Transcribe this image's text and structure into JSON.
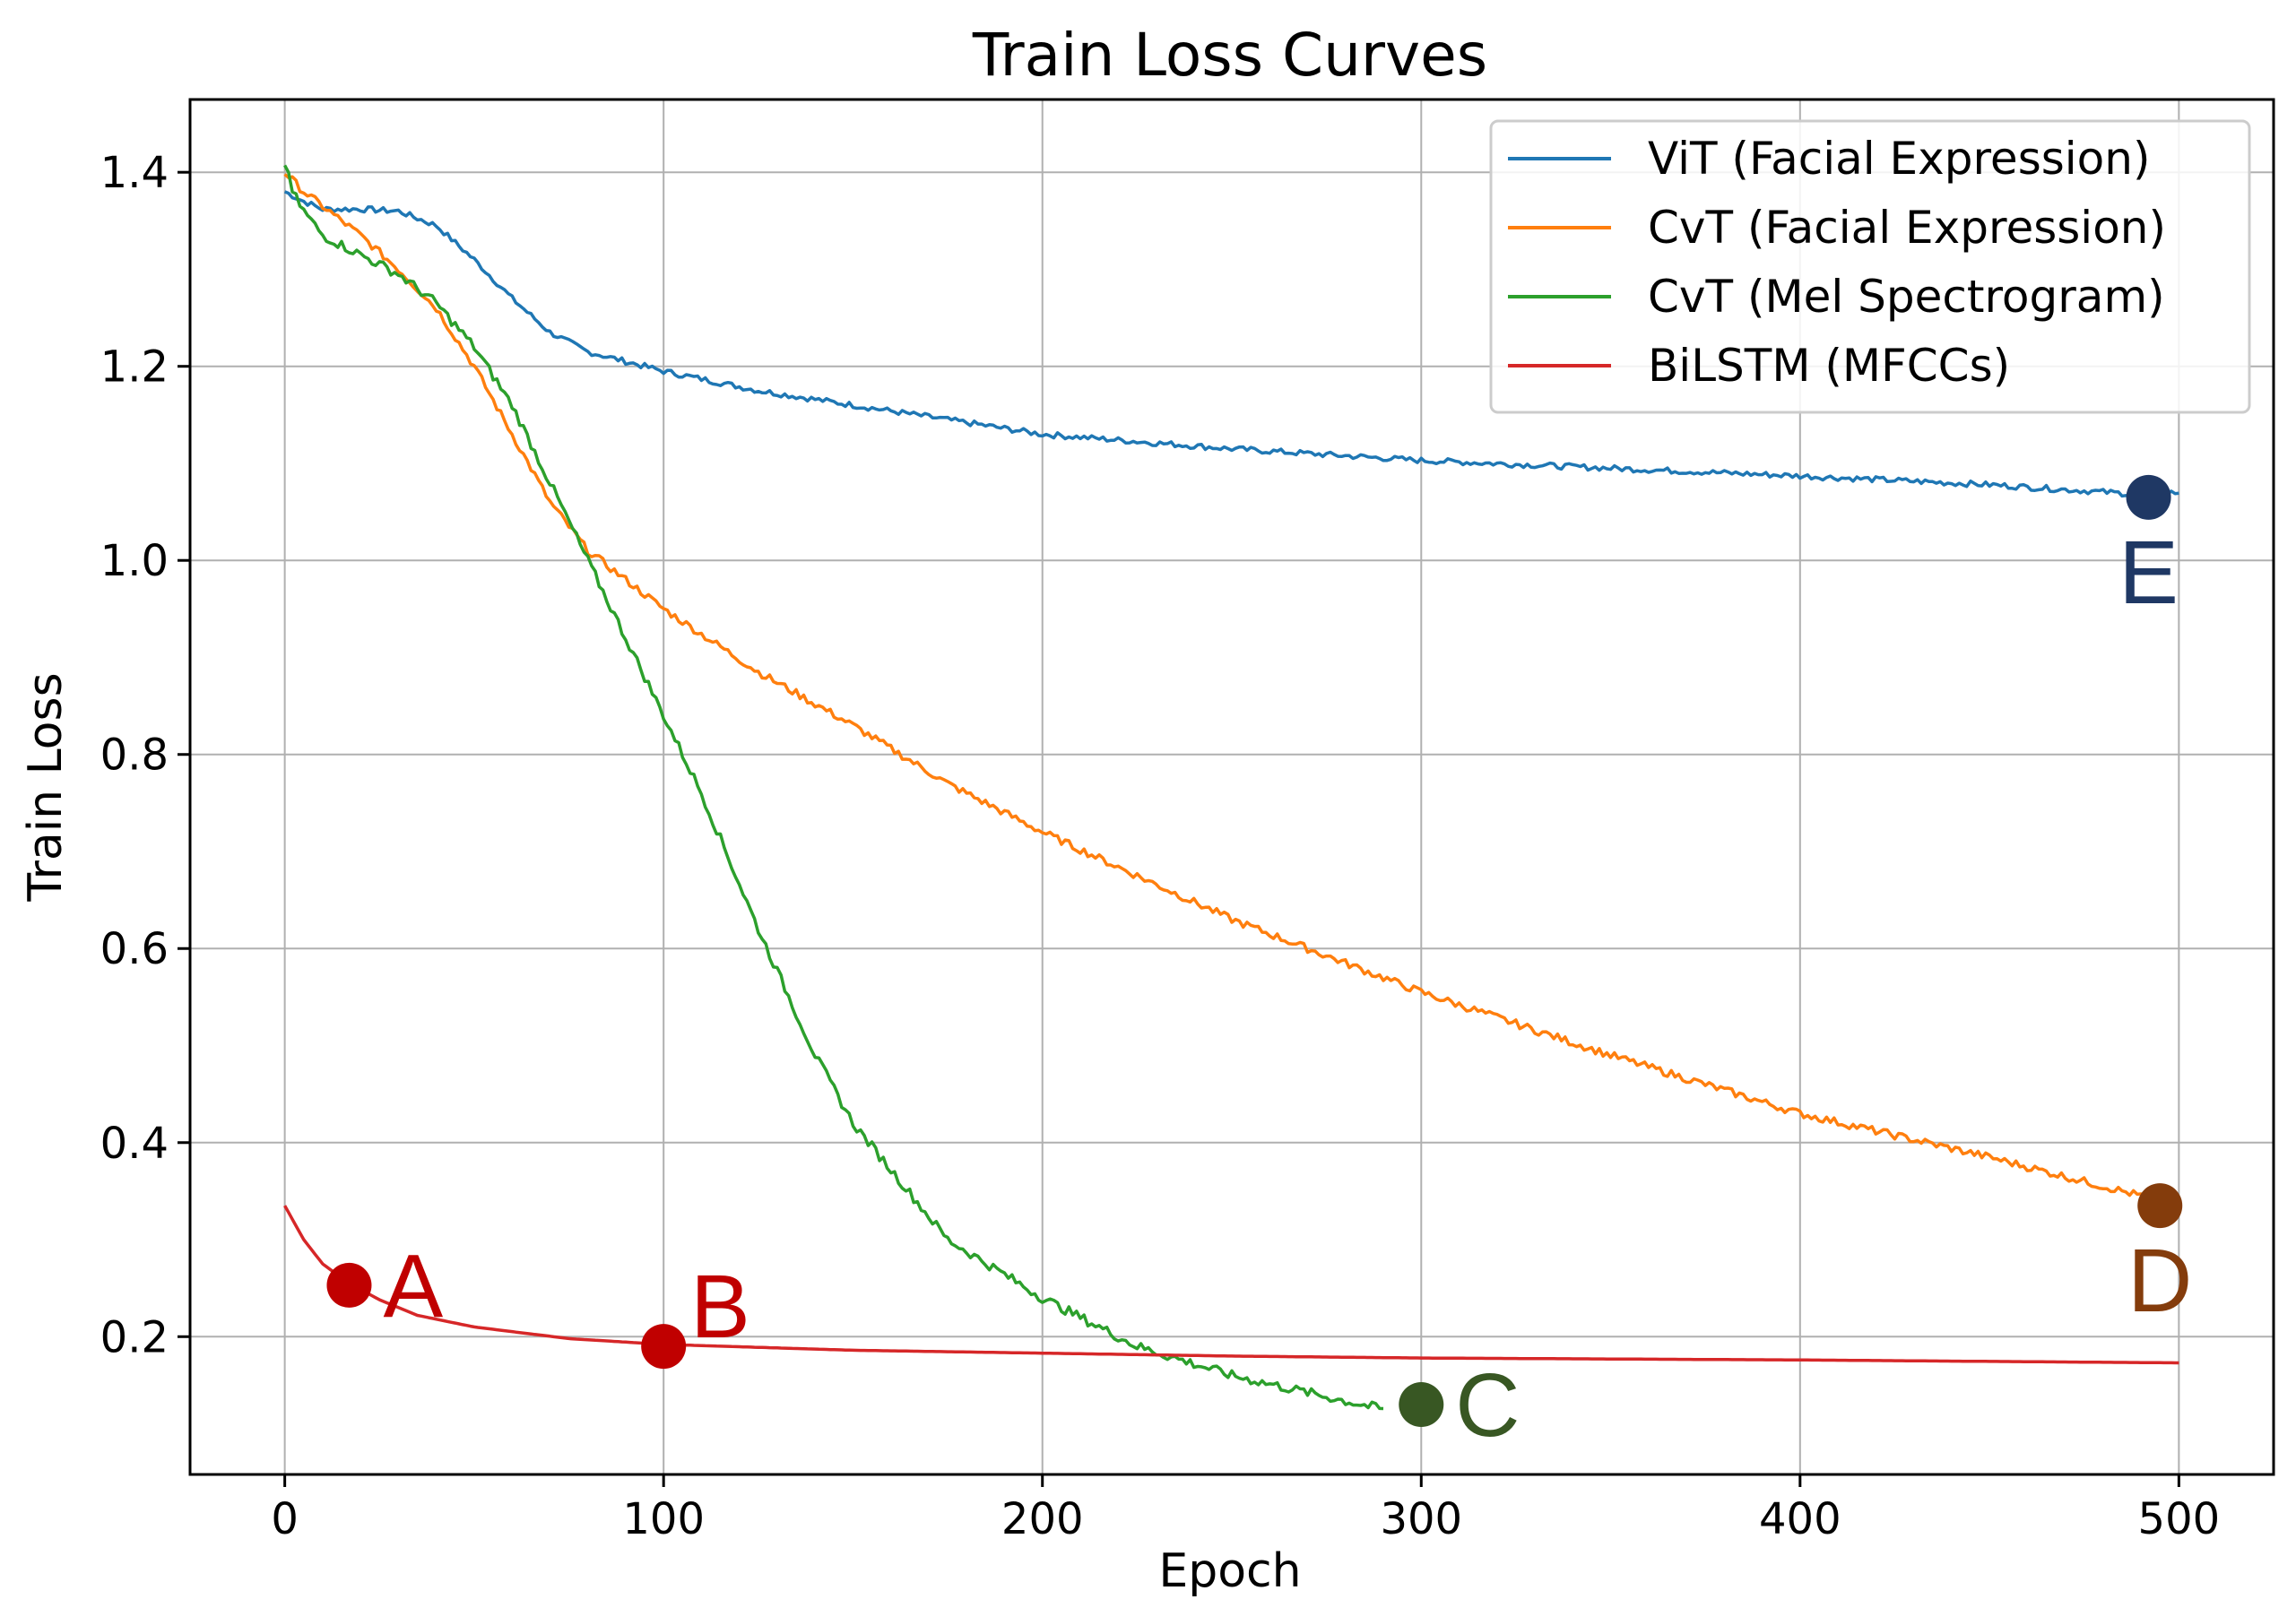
{
  "chart_data": {
    "type": "line",
    "title": "Train Loss Curves",
    "xlabel": "Epoch",
    "ylabel": "Train Loss",
    "xlim": [
      -25,
      525
    ],
    "ylim": [
      0.058,
      1.475
    ],
    "xticks": [
      0,
      100,
      200,
      300,
      400,
      500
    ],
    "yticks": [
      0.2,
      0.4,
      0.6,
      0.8,
      1.0,
      1.2,
      1.4
    ],
    "xtick_labels": [
      "0",
      "100",
      "200",
      "300",
      "400",
      "500"
    ],
    "ytick_labels": [
      "0.2",
      "0.4",
      "0.6",
      "0.8",
      "1.0",
      "1.2",
      "1.4"
    ],
    "grid": true,
    "legend_position": "top-right",
    "series": [
      {
        "name": "ViT (Facial Expression)",
        "color": "#1f77b4",
        "noise": 0.003,
        "x": [
          0,
          5,
          10,
          20,
          30,
          40,
          50,
          60,
          70,
          80,
          90,
          100,
          125,
          150,
          175,
          200,
          250,
          300,
          350,
          400,
          450,
          490,
          500
        ],
        "y": [
          1.38,
          1.37,
          1.362,
          1.362,
          1.36,
          1.345,
          1.31,
          1.27,
          1.235,
          1.215,
          1.205,
          1.195,
          1.175,
          1.16,
          1.145,
          1.13,
          1.115,
          1.103,
          1.095,
          1.087,
          1.078,
          1.068,
          1.07
        ]
      },
      {
        "name": "CvT (Facial Expression)",
        "color": "#ff7f0e",
        "noise": 0.004,
        "x": [
          0,
          5,
          10,
          20,
          30,
          40,
          50,
          60,
          70,
          80,
          90,
          100,
          125,
          150,
          175,
          200,
          250,
          300,
          350,
          400,
          450,
          495
        ],
        "y": [
          1.4,
          1.38,
          1.365,
          1.335,
          1.3,
          1.26,
          1.2,
          1.13,
          1.06,
          1.01,
          0.98,
          0.95,
          0.885,
          0.83,
          0.77,
          0.72,
          0.63,
          0.555,
          0.49,
          0.43,
          0.385,
          0.34
        ]
      },
      {
        "name": "CvT (Mel Spectrogram)",
        "color": "#2ca02c",
        "noise": 0.005,
        "x": [
          0,
          2,
          5,
          10,
          20,
          30,
          40,
          50,
          60,
          70,
          80,
          90,
          100,
          110,
          125,
          140,
          150,
          175,
          200,
          225,
          250,
          275,
          290
        ],
        "y": [
          1.41,
          1.38,
          1.36,
          1.335,
          1.315,
          1.295,
          1.265,
          1.22,
          1.16,
          1.08,
          1.0,
          0.92,
          0.84,
          0.76,
          0.62,
          0.49,
          0.42,
          0.3,
          0.24,
          0.19,
          0.16,
          0.138,
          0.125
        ]
      },
      {
        "name": "BiLSTM (MFCCs)",
        "color": "#d62728",
        "noise": 0,
        "x": [
          0,
          5,
          10,
          17,
          25,
          35,
          50,
          75,
          100,
          150,
          200,
          250,
          300,
          400,
          500
        ],
        "y": [
          0.335,
          0.3,
          0.275,
          0.255,
          0.238,
          0.222,
          0.21,
          0.198,
          0.192,
          0.186,
          0.183,
          0.18,
          0.178,
          0.176,
          0.173
        ]
      }
    ],
    "annotations": [
      {
        "label": "A",
        "x": 17,
        "y": 0.253,
        "color": "#c00000",
        "text_color": "#c00000",
        "text_side": "right"
      },
      {
        "label": "B",
        "x": 100,
        "y": 0.19,
        "color": "#c00000",
        "text_color": "#c00000",
        "text_side": "upper-right"
      },
      {
        "label": "C",
        "x": 300,
        "y": 0.13,
        "color": "#385723",
        "text_color": "#385723",
        "text_side": "right"
      },
      {
        "label": "D",
        "x": 495,
        "y": 0.335,
        "color": "#843c0c",
        "text_color": "#843c0c",
        "text_side": "below"
      },
      {
        "label": "E",
        "x": 492,
        "y": 1.065,
        "color": "#1f3864",
        "text_color": "#1f3864",
        "text_side": "below"
      }
    ]
  }
}
